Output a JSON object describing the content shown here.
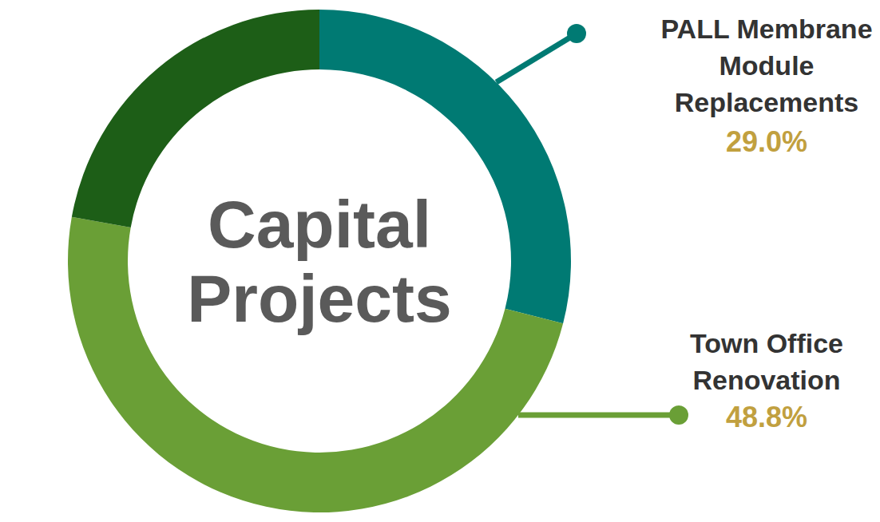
{
  "chart_data": {
    "type": "pie",
    "title": "Capital Projects",
    "categories": [
      "PALL Membrane Module Replacements",
      "Town Office Renovation",
      null
    ],
    "values": [
      29.0,
      48.8,
      22.2
    ],
    "value_labels": [
      "29.0%",
      "48.8%",
      null
    ],
    "colors": [
      "#007a73",
      "#6a9f36",
      "#1d5e17"
    ],
    "data_labels": true
  }
}
